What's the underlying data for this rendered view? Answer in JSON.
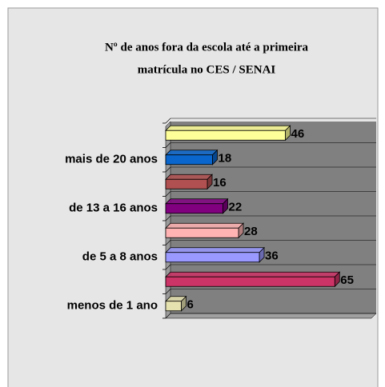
{
  "chart_data": {
    "type": "bar3d_horizontal",
    "title": [
      "Nº de anos fora da escola até a primeira",
      "matrícula no CES / SENAI"
    ],
    "categories": [
      "menos de 1 ano",
      null,
      "de 5 a 8 anos",
      null,
      "de 13 a 16 anos",
      null,
      "mais de 20 anos",
      null
    ],
    "values": [
      6,
      65,
      36,
      28,
      22,
      16,
      18,
      46
    ],
    "colors": [
      "#e6e2b0",
      "#cc3366",
      "#9999ff",
      "#ffb3b3",
      "#800080",
      "#b05050",
      "#0a66cc",
      "#ffff99"
    ],
    "xlim": [
      0,
      80
    ]
  }
}
